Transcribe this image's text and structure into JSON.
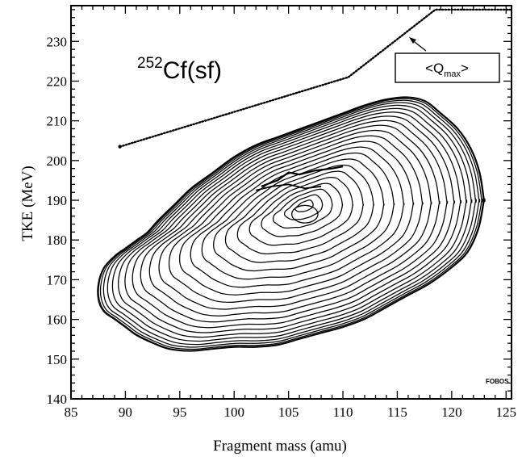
{
  "chart_data": {
    "type": "contour",
    "xlabel": "Fragment mass (amu)",
    "ylabel": "TKE (MeV)",
    "xlim": [
      85,
      125.5
    ],
    "ylim": [
      140,
      239
    ],
    "xticks": [
      85,
      90,
      95,
      100,
      105,
      110,
      115,
      120,
      125
    ],
    "yticks": [
      140,
      150,
      160,
      170,
      180,
      190,
      200,
      210,
      220,
      230
    ],
    "grid": false,
    "annotations": {
      "reaction_mass": "252",
      "reaction_name": "Cf(sf)",
      "qmax_open": "<Q",
      "qmax_sub": "max",
      "qmax_close": ">",
      "detector": "FOBOS"
    },
    "qmax_curve": {
      "x": [
        89.5,
        110.5,
        118.5,
        125.5
      ],
      "y": [
        203.5,
        221,
        238,
        238
      ]
    },
    "contours": {
      "count": 24,
      "center": [
        106.5,
        186.5
      ],
      "outer": {
        "mass": [
          123.0,
          122.6,
          121.8,
          120.6,
          119.0,
          117.6,
          116.0,
          114.0,
          112.0,
          110.0,
          108.0,
          106.0,
          104.0,
          102.0,
          100.0,
          98.0,
          96.0,
          94.5,
          93.0,
          92.0,
          91.0,
          90.0,
          89.0,
          88.0,
          87.5,
          87.5,
          88.0,
          89.0,
          90.0,
          91.0,
          92.5,
          94.0,
          96.0,
          98.0,
          100.0,
          102.0,
          104.0,
          106.0,
          108.0,
          110.0,
          112.0,
          114.0,
          116.0,
          118.0,
          120.0,
          121.5,
          122.5,
          123.0
        ],
        "tke": [
          190.0,
          197.0,
          203.0,
          208.0,
          212.0,
          215.0,
          216.0,
          215.5,
          214.0,
          212.0,
          210.0,
          208.0,
          206.0,
          204.0,
          201.0,
          197.0,
          193.0,
          189.0,
          185.0,
          182.0,
          180.0,
          178.0,
          176.0,
          173.0,
          169.0,
          165.0,
          162.0,
          160.0,
          158.0,
          156.0,
          154.0,
          152.5,
          152.0,
          152.5,
          153.0,
          153.0,
          153.5,
          155.0,
          156.5,
          158.0,
          160.0,
          163.0,
          166.0,
          169.0,
          173.0,
          177.0,
          183.0,
          190.0
        ]
      }
    }
  }
}
